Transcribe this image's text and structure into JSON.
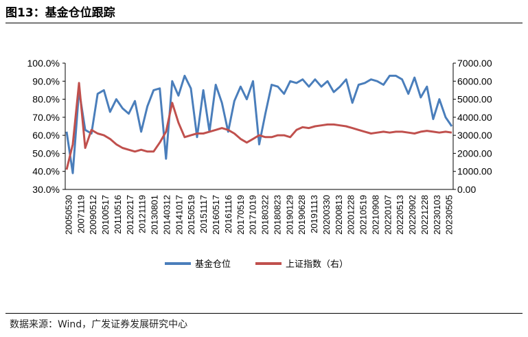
{
  "figure": {
    "title": "图13：基金仓位跟踪",
    "source": "数据来源：Wind，广发证券发展研究中心"
  },
  "chart_data": {
    "type": "line",
    "y_left": {
      "min": 0.3,
      "max": 1.0,
      "ticks": [
        "100.0%",
        "90.0%",
        "80.0%",
        "70.0%",
        "60.0%",
        "50.0%",
        "40.0%",
        "30.0%"
      ]
    },
    "y_right": {
      "min": 0,
      "max": 7000,
      "ticks": [
        "7000.00",
        "6000.00",
        "5000.00",
        "4000.00",
        "3000.00",
        "2000.00",
        "1000.00",
        "0.00"
      ]
    },
    "x_ticks": [
      "20050530",
      "20071119",
      "20090512",
      "20100517",
      "20110516",
      "20120217",
      "20121119",
      "20130801",
      "20140312",
      "20141017",
      "20150519",
      "20151117",
      "20160517",
      "20161116",
      "20170519",
      "20171019",
      "20180322",
      "20180823",
      "20190129",
      "20190628",
      "20191113",
      "20200330",
      "20200813",
      "20201228",
      "20210519",
      "20210908",
      "20220107",
      "20220513",
      "20220902",
      "20221228",
      "20230103",
      "20230505"
    ],
    "series": [
      {
        "name": "基金仓位",
        "axis": "left",
        "color": "#4a7ebb",
        "x": [
          0,
          0.5,
          1,
          1.5,
          2,
          2.5,
          3,
          3.5,
          4,
          4.5,
          5,
          5.5,
          6,
          6.5,
          7,
          7.5,
          8,
          8.5,
          9,
          9.5,
          10,
          10.5,
          11,
          11.5,
          12,
          12.5,
          13,
          13.5,
          14,
          14.5,
          15,
          15.5,
          16,
          16.5,
          17,
          17.5,
          18,
          18.5,
          19,
          19.5,
          20,
          20.5,
          21,
          21.5,
          22,
          22.5,
          23,
          23.5,
          24,
          24.5,
          25,
          25.5,
          26,
          26.5,
          27,
          27.5,
          28,
          28.5,
          29,
          29.5,
          30,
          30.5,
          31
        ],
        "values": [
          0.62,
          0.39,
          0.85,
          0.63,
          0.61,
          0.83,
          0.85,
          0.73,
          0.8,
          0.75,
          0.72,
          0.79,
          0.62,
          0.76,
          0.85,
          0.86,
          0.47,
          0.9,
          0.82,
          0.93,
          0.86,
          0.59,
          0.85,
          0.62,
          0.88,
          0.78,
          0.62,
          0.79,
          0.87,
          0.8,
          0.9,
          0.55,
          0.72,
          0.88,
          0.87,
          0.83,
          0.9,
          0.89,
          0.91,
          0.87,
          0.91,
          0.87,
          0.9,
          0.84,
          0.87,
          0.91,
          0.78,
          0.88,
          0.89,
          0.91,
          0.9,
          0.88,
          0.93,
          0.93,
          0.91,
          0.83,
          0.92,
          0.81,
          0.87,
          0.69,
          0.8,
          0.7,
          0.65
        ]
      },
      {
        "name": "上证指数（右）",
        "axis": "right",
        "color": "#c0504d",
        "x": [
          0,
          0.5,
          1,
          1.5,
          2,
          2.5,
          3,
          3.5,
          4,
          4.5,
          5,
          5.5,
          6,
          6.5,
          7,
          7.5,
          8,
          8.5,
          9,
          9.5,
          10,
          10.5,
          11,
          11.5,
          12,
          12.5,
          13,
          13.5,
          14,
          14.5,
          15,
          15.5,
          16,
          16.5,
          17,
          17.5,
          18,
          18.5,
          19,
          19.5,
          20,
          20.5,
          21,
          21.5,
          22,
          22.5,
          23,
          23.5,
          24,
          24.5,
          25,
          25.5,
          26,
          26.5,
          27,
          27.5,
          28,
          28.5,
          29,
          29.5,
          30,
          30.5,
          31
        ],
        "values": [
          1100,
          2500,
          5900,
          2300,
          3300,
          3100,
          3000,
          2800,
          2500,
          2300,
          2200,
          2100,
          2200,
          2100,
          2100,
          2600,
          3200,
          4800,
          3700,
          2900,
          3000,
          3100,
          3100,
          3200,
          3300,
          3400,
          3300,
          3100,
          2800,
          2600,
          2800,
          3000,
          2900,
          2900,
          3000,
          3000,
          2900,
          3300,
          3450,
          3400,
          3500,
          3550,
          3600,
          3600,
          3550,
          3500,
          3400,
          3300,
          3200,
          3100,
          3150,
          3200,
          3150,
          3200,
          3200,
          3150,
          3100,
          3200,
          3250,
          3200,
          3150,
          3200,
          3150
        ]
      }
    ],
    "legend": "bottom",
    "grid": false
  }
}
